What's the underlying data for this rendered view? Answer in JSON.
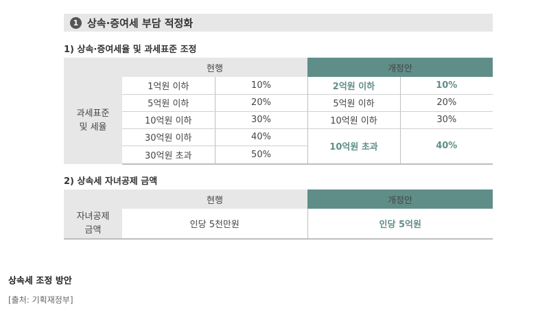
{
  "section": {
    "number": "1",
    "title": "상속·증여세 부담 적정화"
  },
  "table1": {
    "subtitle": "1) 상속·증여세율 및 과세표준 조정",
    "header_current": "현행",
    "header_proposed": "개정안",
    "row_label": "과세표준\n및 세율",
    "current_rows": [
      {
        "bracket": "1억원 이하",
        "rate": "10%"
      },
      {
        "bracket": "5억원 이하",
        "rate": "20%"
      },
      {
        "bracket": "10억원 이하",
        "rate": "30%"
      },
      {
        "bracket": "30억원 이하",
        "rate": "40%"
      },
      {
        "bracket": "30억원 초과",
        "rate": "50%"
      }
    ],
    "proposed_rows": [
      {
        "bracket": "2억원 이하",
        "rate": "10%"
      },
      {
        "bracket": "5억원 이하",
        "rate": "20%"
      },
      {
        "bracket": "10억원 이하",
        "rate": "30%"
      },
      {
        "bracket": "10억원 초과",
        "rate": "40%"
      }
    ]
  },
  "table2": {
    "subtitle": "2) 상속세 자녀공제 금액",
    "header_current": "현행",
    "header_proposed": "개정안",
    "row_label": "자녀공제\n금액",
    "current_value": "인당 5천만원",
    "proposed_value": "인당 5억원"
  },
  "caption": "상속세 조정 방안",
  "source": "[출처: 기획재정부]"
}
